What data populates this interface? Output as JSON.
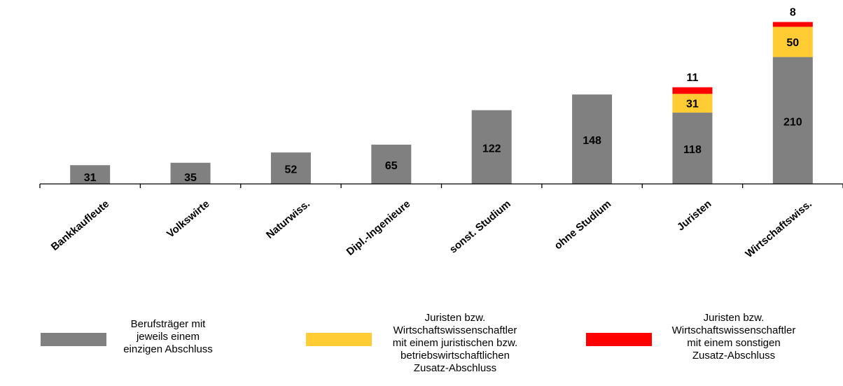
{
  "chart_data": {
    "type": "bar",
    "stacked": true,
    "categories": [
      "Bankkaufleute",
      "Volkswirte",
      "Naturwiss.",
      "Dipl.-Ingenieure",
      "sonst. Studium",
      "ohne Studium",
      "Juristen",
      "Wirtschaftswiss."
    ],
    "series": [
      {
        "name": "Berufsträger mit jeweils einem einzigen Abschluss",
        "color": "#808080",
        "values": [
          31,
          35,
          52,
          65,
          122,
          148,
          118,
          210
        ]
      },
      {
        "name": "Juristen bzw. Wirtschaftswissenschaftler mit einem juristischen bzw. betriebswirtschaftlichen Zusatz-Abschluss",
        "color": "#FFCC33",
        "values": [
          0,
          0,
          0,
          0,
          0,
          0,
          31,
          50
        ]
      },
      {
        "name": "Juristen bzw. Wirtschaftswissenschaftler mit einem sonstigen Zusatz-Abschluss",
        "color": "#FF0000",
        "values": [
          0,
          0,
          0,
          0,
          0,
          0,
          11,
          8
        ]
      }
    ],
    "data_labels": {
      "base": [
        "31",
        "35",
        "52",
        "65",
        "122",
        "148",
        "118",
        "210"
      ],
      "middle": [
        "",
        "",
        "",
        "",
        "",
        "",
        "31",
        "50"
      ],
      "top": [
        "",
        "",
        "",
        "",
        "",
        "",
        "11",
        "8"
      ]
    },
    "title": "",
    "xlabel": "",
    "ylabel": "",
    "ylim": [
      0,
      280
    ],
    "grid": false,
    "legend_position": "bottom",
    "legend": [
      {
        "text": "Berufsträger mit\njeweils einem\neinzigen Abschluss",
        "color": "#808080"
      },
      {
        "text": "Juristen bzw.\nWirtschaftswissenschaftler\nmit einem juristischen bzw.\nbetriebswirtschaftlichen\nZusatz-Abschluss",
        "color": "#FFCC33"
      },
      {
        "text": "Juristen bzw.\nWirtschaftswissenschaftler\nmit einem sonstigen\nZusatz-Abschluss",
        "color": "#FF0000"
      }
    ]
  }
}
